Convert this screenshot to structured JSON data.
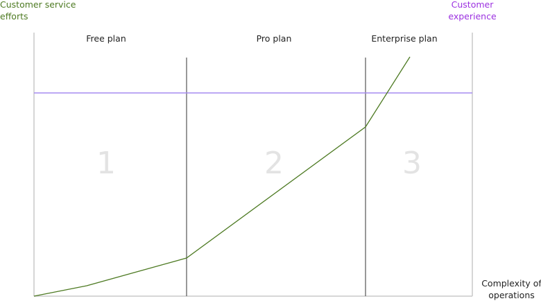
{
  "axes": {
    "vertical": "Customer service efforts",
    "secondary": "Customer experience",
    "horizontal": "Complexity of operations"
  },
  "zones": [
    {
      "plan": "Free plan",
      "number": "1"
    },
    {
      "plan": "Pro plan",
      "number": "2"
    },
    {
      "plan": "Enterprise plan",
      "number": "3"
    }
  ]
}
